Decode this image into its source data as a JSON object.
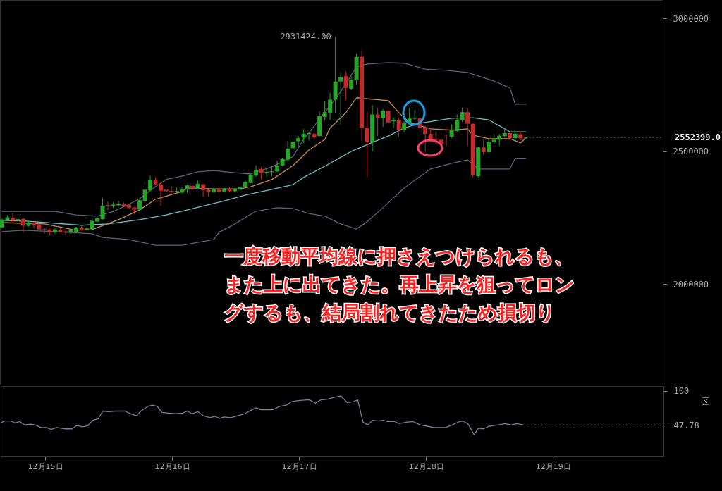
{
  "chart_data": [
    {
      "type": "candlestick",
      "x": [
        "--12-14T16:00",
        "--12-14T17:00",
        "--12-14T18:00",
        "--12-14T19:00",
        "--12-14T20:00",
        "--12-14T21:00",
        "--12-14T22:00",
        "--12-14T23:00",
        "--12-15T00:00",
        "--12-15T01:00",
        "--12-15T02:00",
        "--12-15T03:00",
        "--12-15T04:00",
        "--12-15T05:00",
        "--12-15T06:00",
        "--12-15T07:00",
        "--12-15T08:00",
        "--12-15T09:00",
        "--12-15T10:00",
        "--12-15T11:00",
        "--12-15T12:00",
        "--12-15T13:00",
        "--12-15T14:00",
        "--12-15T15:00",
        "--12-15T16:00",
        "--12-15T17:00",
        "--12-15T18:00",
        "--12-15T19:00",
        "--12-15T20:00",
        "--12-15T21:00",
        "--12-15T22:00",
        "--12-15T23:00",
        "--12-16T00:00",
        "--12-16T01:00",
        "--12-16T02:00",
        "--12-16T03:00",
        "--12-16T04:00",
        "--12-16T05:00",
        "--12-16T06:00",
        "--12-16T07:00",
        "--12-16T08:00",
        "--12-16T09:00",
        "--12-16T10:00",
        "--12-16T11:00",
        "--12-16T12:00",
        "--12-16T13:00",
        "--12-16T14:00",
        "--12-16T15:00",
        "--12-16T16:00",
        "--12-16T17:00",
        "--12-16T18:00",
        "--12-16T19:00",
        "--12-16T20:00",
        "--12-16T21:00",
        "--12-16T22:00",
        "--12-16T23:00",
        "--12-17T00:00",
        "--12-17T01:00",
        "--12-17T02:00",
        "--12-17T03:00",
        "--12-17T04:00",
        "--12-17T05:00",
        "--12-17T06:00",
        "--12-17T07:00",
        "--12-17T08:00",
        "--12-17T09:00",
        "--12-17T10:00",
        "--12-17T11:00",
        "--12-17T12:00",
        "--12-17T13:00",
        "--12-17T14:00",
        "--12-17T15:00",
        "--12-17T16:00",
        "--12-17T17:00",
        "--12-17T18:00",
        "--12-17T19:00",
        "--12-17T20:00",
        "--12-17T21:00",
        "--12-17T22:00",
        "--12-17T23:00",
        "--12-18T00:00",
        "--12-18T01:00",
        "--12-18T02:00",
        "--12-18T03:00",
        "--12-18T04:00",
        "--12-18T05:00",
        "--12-18T06:00",
        "--12-18T07:00",
        "--12-18T08:00",
        "--12-18T09:00",
        "--12-18T10:00",
        "--12-18T11:00",
        "--12-18T12:00",
        "--12-18T13:00",
        "--12-18T14:00",
        "--12-18T15:00",
        "--12-18T16:00",
        "--12-18T17:00",
        "--12-18T18:00",
        "--12-18T19:00"
      ],
      "ohlc": [
        [
          2214000,
          2248000,
          2212000,
          2243000
        ],
        [
          2242000,
          2260000,
          2237000,
          2252000
        ],
        [
          2250000,
          2269000,
          2239000,
          2239000
        ],
        [
          2239000,
          2255000,
          2221000,
          2245000
        ],
        [
          2246000,
          2250000,
          2193000,
          2220000
        ],
        [
          2220000,
          2235000,
          2217000,
          2232000
        ],
        [
          2232000,
          2235000,
          2212000,
          2221000
        ],
        [
          2225000,
          2228000,
          2202000,
          2206000
        ],
        [
          2209000,
          2214000,
          2190000,
          2206000
        ],
        [
          2206000,
          2210000,
          2186000,
          2195000
        ],
        [
          2195000,
          2210000,
          2190000,
          2206000
        ],
        [
          2205000,
          2212000,
          2195000,
          2197000
        ],
        [
          2199000,
          2202000,
          2186000,
          2197000
        ],
        [
          2195000,
          2208000,
          2190000,
          2204000
        ],
        [
          2197000,
          2217000,
          2195000,
          2214000
        ],
        [
          2214000,
          2217000,
          2202000,
          2204000
        ],
        [
          2205000,
          2212000,
          2204000,
          2210000
        ],
        [
          2208000,
          2250000,
          2204000,
          2239000
        ],
        [
          2236000,
          2252000,
          2234000,
          2248000
        ],
        [
          2245000,
          2325000,
          2243000,
          2296000
        ],
        [
          2298000,
          2311000,
          2279000,
          2296000
        ],
        [
          2296000,
          2309000,
          2288000,
          2300000
        ],
        [
          2297000,
          2314000,
          2292000,
          2301000
        ],
        [
          2303000,
          2308000,
          2292000,
          2294000
        ],
        [
          2299000,
          2301000,
          2283000,
          2288000
        ],
        [
          2289000,
          2290000,
          2264000,
          2281000
        ],
        [
          2281000,
          2320000,
          2279000,
          2316000
        ],
        [
          2314000,
          2385000,
          2314000,
          2356000
        ],
        [
          2354000,
          2409000,
          2352000,
          2391000
        ],
        [
          2391000,
          2403000,
          2372000,
          2376000
        ],
        [
          2376000,
          2382000,
          2296000,
          2352000
        ],
        [
          2356000,
          2369000,
          2341000,
          2350000
        ],
        [
          2351000,
          2369000,
          2341000,
          2348000
        ],
        [
          2348000,
          2363000,
          2345000,
          2351000
        ],
        [
          2345000,
          2367000,
          2341000,
          2356000
        ],
        [
          2356000,
          2375000,
          2344000,
          2372000
        ],
        [
          2370000,
          2372000,
          2356000,
          2359000
        ],
        [
          2360000,
          2390000,
          2359000,
          2378000
        ],
        [
          2376000,
          2378000,
          2330000,
          2354000
        ],
        [
          2356000,
          2359000,
          2329000,
          2347000
        ],
        [
          2347000,
          2363000,
          2345000,
          2359000
        ],
        [
          2356000,
          2359000,
          2345000,
          2349000
        ],
        [
          2349000,
          2363000,
          2347000,
          2359000
        ],
        [
          2359000,
          2366000,
          2347000,
          2350000
        ],
        [
          2350000,
          2360000,
          2345000,
          2358000
        ],
        [
          2356000,
          2369000,
          2354000,
          2367000
        ],
        [
          2366000,
          2390000,
          2363000,
          2385000
        ],
        [
          2381000,
          2416000,
          2379000,
          2412000
        ],
        [
          2409000,
          2447000,
          2405000,
          2429000
        ],
        [
          2434000,
          2441000,
          2394000,
          2420000
        ],
        [
          2420000,
          2436000,
          2405000,
          2423000
        ],
        [
          2422000,
          2443000,
          2407000,
          2425000
        ],
        [
          2425000,
          2465000,
          2423000,
          2447000
        ],
        [
          2447000,
          2476000,
          2444000,
          2471000
        ],
        [
          2469000,
          2540000,
          2462000,
          2511000
        ],
        [
          2512000,
          2550000,
          2494000,
          2537000
        ],
        [
          2538000,
          2558000,
          2513000,
          2550000
        ],
        [
          2552000,
          2584000,
          2531000,
          2566000
        ],
        [
          2566000,
          2575000,
          2542000,
          2569000
        ],
        [
          2566000,
          2569000,
          2547000,
          2553000
        ],
        [
          2558000,
          2650000,
          2556000,
          2633000
        ],
        [
          2630000,
          2688000,
          2618000,
          2648000
        ],
        [
          2646000,
          2721000,
          2618000,
          2695000
        ],
        [
          2695000,
          2931424,
          2646000,
          2763000
        ],
        [
          2763000,
          2796000,
          2602000,
          2781000
        ],
        [
          2783000,
          2801000,
          2695000,
          2739000
        ],
        [
          2736000,
          2783000,
          2730000,
          2770000
        ],
        [
          2768000,
          2869000,
          2752000,
          2856000
        ],
        [
          2856000,
          2880000,
          2540000,
          2588000
        ],
        [
          2588000,
          2650000,
          2403000,
          2535000
        ],
        [
          2535000,
          2674000,
          2500000,
          2639000
        ],
        [
          2639000,
          2664000,
          2558000,
          2626000
        ],
        [
          2626000,
          2659000,
          2593000,
          2653000
        ],
        [
          2653000,
          2655000,
          2606000,
          2609000
        ],
        [
          2613000,
          2628000,
          2588000,
          2619000
        ],
        [
          2619000,
          2624000,
          2556000,
          2580000
        ],
        [
          2580000,
          2615000,
          2571000,
          2606000
        ],
        [
          2606000,
          2664000,
          2602000,
          2624000
        ],
        [
          2623000,
          2655000,
          2619000,
          2626000
        ],
        [
          2624000,
          2628000,
          2571000,
          2588000
        ],
        [
          2588000,
          2597000,
          2500000,
          2566000
        ],
        [
          2566000,
          2588000,
          2535000,
          2544000
        ],
        [
          2547000,
          2575000,
          2527000,
          2544000
        ],
        [
          2544000,
          2565000,
          2520000,
          2527000
        ],
        [
          2559000,
          2562000,
          2522000,
          2558000
        ],
        [
          2555000,
          2602000,
          2550000,
          2580000
        ],
        [
          2577000,
          2639000,
          2573000,
          2619000
        ],
        [
          2618000,
          2665000,
          2611000,
          2648000
        ],
        [
          2648000,
          2662000,
          2520000,
          2604000
        ],
        [
          2604000,
          2606000,
          2403000,
          2412000
        ],
        [
          2407000,
          2518000,
          2400000,
          2515000
        ],
        [
          2515000,
          2544000,
          2487000,
          2497000
        ],
        [
          2497000,
          2549000,
          2496000,
          2537000
        ],
        [
          2535000,
          2564000,
          2527000,
          2544000
        ],
        [
          2544000,
          2566000,
          2522000,
          2559000
        ],
        [
          2558000,
          2588000,
          2553000,
          2569000
        ],
        [
          2569000,
          2575000,
          2538000,
          2549000
        ],
        [
          2550000,
          2580000,
          2544000,
          2566000
        ],
        [
          2565000,
          2575000,
          2542000,
          2549000
        ],
        [
          2549000,
          2554000,
          2548000,
          2552399
        ]
      ],
      "colors": [
        "#26a626",
        "#26a626",
        "#c42a2a",
        "#26a626",
        "#c42a2a",
        "#26a626",
        "#c42a2a",
        "#c42a2a",
        "#c42a2a",
        "#c42a2a",
        "#26a626",
        "#c42a2a",
        "#c42a2a",
        "#26a626",
        "#26a626",
        "#c42a2a",
        "#26a626",
        "#26a626",
        "#26a626",
        "#26a626",
        "#c42a2a",
        "#26a626",
        "#26a626",
        "#c42a2a",
        "#c42a2a",
        "#c42a2a",
        "#26a626",
        "#26a626",
        "#26a626",
        "#c42a2a",
        "#c42a2a",
        "#c42a2a",
        "#c42a2a",
        "#26a626",
        "#26a626",
        "#26a626",
        "#c42a2a",
        "#26a626",
        "#c42a2a",
        "#c42a2a",
        "#26a626",
        "#c42a2a",
        "#26a626",
        "#c42a2a",
        "#26a626",
        "#26a626",
        "#26a626",
        "#26a626",
        "#26a626",
        "#c42a2a",
        "#26a626",
        "#26a626",
        "#26a626",
        "#26a626",
        "#26a626",
        "#26a626",
        "#26a626",
        "#26a626",
        "#26a626",
        "#c42a2a",
        "#26a626",
        "#26a626",
        "#26a626",
        "#26a626",
        "#26a626",
        "#c42a2a",
        "#26a626",
        "#26a626",
        "#c42a2a",
        "#c42a2a",
        "#26a626",
        "#c42a2a",
        "#26a626",
        "#c42a2a",
        "#26a626",
        "#c42a2a",
        "#26a626",
        "#26a626",
        "#26a626",
        "#c42a2a",
        "#c42a2a",
        "#c42a2a",
        "#c42a2a",
        "#c42a2a",
        "#c42a2a",
        "#26a626",
        "#26a626",
        "#26a626",
        "#c42a2a",
        "#c42a2a",
        "#26a626",
        "#c42a2a",
        "#26a626",
        "#26a626",
        "#26a626",
        "#26a626",
        "#c42a2a",
        "#26a626",
        "#c42a2a",
        "#26a626"
      ],
      "series": [
        {
          "type": "line",
          "color": "#5c6378",
          "x": [
            "--12-14T16:00",
            "--12-14T21:00",
            "--12-15T02:00",
            "--12-15T06:00",
            "--12-15T10:00",
            "--12-15T13:00",
            "--12-15T16:00",
            "--12-15T18:00",
            "--12-15T21:00",
            "--12-15T23:00",
            "--12-16T02:00",
            "--12-16T05:00",
            "--12-16T08:00",
            "--12-16T12:00",
            "--12-16T15:00",
            "--12-16T19:00",
            "--12-16T23:00",
            "--12-17T01:00",
            "--12-17T06:00",
            "--12-17T08:00",
            "--12-17T11:00",
            "--12-17T13:00",
            "--12-17T17:00",
            "--12-17T20:00",
            "--12-18T00:00",
            "--12-18T04:00",
            "--12-18T08:00",
            "--12-18T13:00",
            "--12-18T16:00",
            "--12-18T17:00",
            "--12-18T19:00"
          ],
          "values": [
            2274000,
            2274000,
            2274000,
            2261000,
            2256000,
            2274000,
            2301000,
            2322000,
            2367000,
            2394000,
            2407000,
            2423000,
            2428000,
            2420000,
            2415000,
            2442000,
            2481000,
            2545000,
            2672000,
            2725000,
            2818000,
            2829000,
            2834000,
            2832000,
            2810000,
            2805000,
            2797000,
            2765000,
            2739000,
            2678000,
            2678000
          ]
        },
        {
          "type": "line",
          "color": "#5c6378",
          "x": [
            "--12-14T16:00",
            "--12-14T20:00",
            "--12-15T02:00",
            "--12-15T09:00",
            "--12-15T11:00",
            "--12-15T16:00",
            "--12-15T21:00",
            "--12-16T02:00",
            "--12-16T08:00",
            "--12-16T09:00",
            "--12-16T12:00",
            "--12-16T16:00",
            "--12-16T20:00",
            "--12-16T23:00",
            "--12-17T02:00",
            "--12-17T05:00",
            "--12-17T08:00",
            "--12-17T11:00",
            "--12-17T13:00",
            "--12-17T16:00",
            "--12-17T20:00",
            "--12-18T01:00",
            "--12-18T05:00",
            "--12-18T08:00",
            "--12-18T10:00",
            "--12-18T16:00",
            "--12-18T17:00",
            "--12-18T19:00"
          ],
          "values": [
            2198000,
            2203000,
            2198000,
            2190000,
            2176000,
            2168000,
            2147000,
            2147000,
            2168000,
            2195000,
            2227000,
            2275000,
            2288000,
            2285000,
            2266000,
            2256000,
            2227000,
            2208000,
            2235000,
            2288000,
            2362000,
            2434000,
            2455000,
            2468000,
            2434000,
            2434000,
            2474000,
            2474000
          ]
        },
        {
          "type": "line",
          "color": "#6cc0c8",
          "x": [
            "--12-14T16:00",
            "--12-14T21:00",
            "--12-15T07:00",
            "--12-15T12:00",
            "--12-15T18:00",
            "--12-15T23:00",
            "--12-16T02:00",
            "--12-16T10:00",
            "--12-16T14:00",
            "--12-16T19:00",
            "--12-16T23:00",
            "--12-17T01:00",
            "--12-17T05:00",
            "--12-17T10:00",
            "--12-17T14:00",
            "--12-17T17:00",
            "--12-17T20:00",
            "--12-17T23:00",
            "--12-18T05:00",
            "--12-18T09:00",
            "--12-18T12:00",
            "--12-18T16:00",
            "--12-18T19:00"
          ],
          "values": [
            2240000,
            2237000,
            2222000,
            2227000,
            2243000,
            2261000,
            2275000,
            2314000,
            2336000,
            2357000,
            2375000,
            2402000,
            2444000,
            2500000,
            2534000,
            2558000,
            2588000,
            2606000,
            2625000,
            2627000,
            2619000,
            2574000,
            2574000
          ]
        },
        {
          "type": "line",
          "color": "#c88a50",
          "x": [
            "--12-14T16:00",
            "--12-15T00:00",
            "--12-15T06:00",
            "--12-15T09:00",
            "--12-15T14:00",
            "--12-15T18:00",
            "--12-15T21:00",
            "--12-16T02:00",
            "--12-16T03:00",
            "--12-16T08:00",
            "--12-16T13:00",
            "--12-16T15:00",
            "--12-16T19:00",
            "--12-16T23:00",
            "--12-17T02:00",
            "--12-17T05:00",
            "--12-17T06:00",
            "--12-17T09:00",
            "--12-17T11:00",
            "--12-17T17:00",
            "--12-17T19:00",
            "--12-17T21:00",
            "--12-18T01:00",
            "--12-18T05:00",
            "--12-18T08:00",
            "--12-18T09:00",
            "--12-18T12:00",
            "--12-18T16:00",
            "--12-18T18:00",
            "--12-18T19:00"
          ],
          "values": [
            2232000,
            2227000,
            2203000,
            2206000,
            2243000,
            2280000,
            2320000,
            2349000,
            2362000,
            2359000,
            2359000,
            2367000,
            2394000,
            2447000,
            2505000,
            2545000,
            2588000,
            2646000,
            2702000,
            2691000,
            2646000,
            2609000,
            2585000,
            2580000,
            2585000,
            2561000,
            2548000,
            2548000,
            2532000,
            2550000
          ]
        }
      ],
      "xlim": [
        "--12-14T15:36",
        "--12-19T20:54"
      ],
      "ylim": [
        1622000,
        3070000
      ],
      "yticks": [
        2000000,
        2500000,
        3000000
      ],
      "tick_labels": "y",
      "ref_lines": [
        {
          "axis": "y",
          "value": 2552399,
          "label": "2552399.0",
          "color": "#3a9a3a",
          "line_style": "dotted"
        }
      ],
      "annotations": [
        {
          "text": "2931424.00",
          "x": "--12-17T07:00",
          "y": 2931424
        },
        "一度移動平均線に押さえつけられるも、また上に出てきた。再上昇を狙ってロングするも、結局割れてきたため損切り"
      ]
    },
    {
      "type": "line",
      "x": [
        "--12-14T15:36",
        "--12-14T16:24",
        "--12-14T17:30",
        "--12-14T18:18",
        "--12-14T19:12",
        "--12-14T20:06",
        "--12-14T21:12",
        "--12-14T22:06",
        "--12-14T23:12",
        "--12-15T00:18",
        "--12-15T01:06",
        "--12-15T02:12",
        "--12-15T03:48",
        "--12-15T05:06",
        "--12-15T06:00",
        "--12-15T07:06",
        "--12-15T08:06",
        "--12-15T09:00",
        "--12-15T10:00",
        "--12-15T10:54",
        "--12-15T12:00",
        "--12-15T13:18",
        "--12-15T15:06",
        "--12-15T16:24",
        "--12-15T17:18",
        "--12-15T18:06",
        "--12-15T19:24",
        "--12-15T20:18",
        "--12-15T21:12",
        "--12-15T22:06",
        "--12-15T23:24",
        "--12-16T00:42",
        "--12-16T02:00",
        "--12-16T02:54",
        "--12-16T03:42",
        "--12-16T04:54",
        "--12-16T05:54",
        "--12-16T07:12",
        "--12-16T08:06",
        "--12-16T09:00",
        "--12-16T09:48",
        "--12-16T11:06",
        "--12-16T12:24",
        "--12-16T13:42",
        "--12-16T15:06",
        "--12-16T15:54",
        "--12-16T16:48",
        "--12-16T19:00",
        "--12-16T20:18",
        "--12-16T21:36",
        "--12-16T22:30",
        "--12-16T23:48",
        "--12-17T01:30",
        "--12-17T02:00",
        "--12-17T03:06",
        "--12-17T04:06",
        "--12-17T05:24",
        "--12-17T06:42",
        "--12-17T07:54",
        "--12-17T09:06",
        "--12-17T10:12",
        "--12-17T11:06",
        "--12-17T12:06",
        "--12-17T13:00",
        "--12-17T13:54",
        "--12-17T15:00",
        "--12-17T15:54",
        "--12-17T16:48",
        "--12-17T18:06",
        "--12-17T18:54",
        "--12-17T20:18",
        "--12-17T21:36",
        "--12-17T22:54",
        "--12-18T00:12",
        "--12-18T01:30",
        "--12-18T03:42",
        "--12-18T05:00",
        "--12-18T06:18",
        "--12-18T07:00",
        "--12-18T08:00",
        "--12-18T09:06",
        "--12-18T09:54",
        "--12-18T10:54",
        "--12-18T11:54",
        "--12-18T13:42",
        "--12-18T15:00",
        "--12-18T16:06",
        "--12-18T17:12",
        "--12-18T18:30"
      ],
      "series": [
        {
          "color": "#7a8094",
          "values": [
            51,
            54,
            54,
            51,
            53,
            48,
            49,
            48,
            44,
            44,
            41,
            44,
            42,
            42,
            47,
            45,
            47,
            55,
            57,
            69,
            68,
            69,
            69,
            64,
            62,
            69,
            76,
            78,
            76,
            67,
            66,
            65,
            66,
            69,
            65,
            68,
            62,
            59,
            61,
            58,
            60,
            59,
            62,
            65,
            71,
            74,
            71,
            71,
            76,
            78,
            83,
            85,
            86,
            86,
            81,
            86,
            87,
            90,
            92,
            82,
            83,
            86,
            52,
            48,
            55,
            54,
            55,
            53,
            53,
            50,
            52,
            53,
            48,
            46,
            44,
            44,
            48,
            53,
            54,
            49,
            33,
            43,
            42,
            46,
            48,
            50,
            48,
            50,
            47.78
          ]
        }
      ],
      "xlim": [
        "--12-14T15:36",
        "--12-19T20:54"
      ],
      "ylim": [
        0,
        107
      ],
      "yticks": [
        100,
        47.78
      ],
      "xticks": [
        {
          "value": "--12-15",
          "label": "12月15日"
        },
        {
          "value": "--12-16",
          "label": "12月16日"
        },
        {
          "value": "--12-17",
          "label": "12月17日"
        },
        {
          "value": "--12-18",
          "label": "12月18日"
        },
        {
          "value": "--12-19",
          "label": "12月19日"
        }
      ],
      "ref_lines": [
        {
          "axis": "y",
          "value": 47.78,
          "color": "#8a8a8a",
          "line_style": "dotted"
        }
      ]
    }
  ]
}
